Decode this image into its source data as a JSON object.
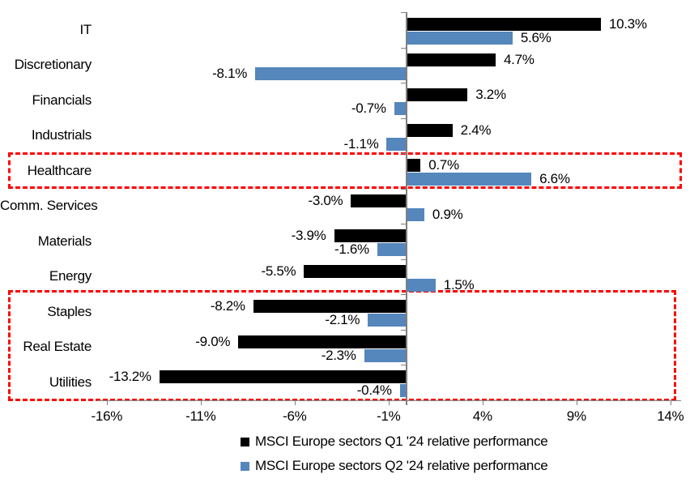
{
  "chart_data": {
    "type": "bar",
    "orientation": "horizontal",
    "title": "",
    "xlabel": "",
    "ylabel": "",
    "categories": [
      "IT",
      "Discretionary",
      "Financials",
      "Industrials",
      "Healthcare",
      "Comm. Services",
      "Materials",
      "Energy",
      "Staples",
      "Real Estate",
      "Utilities"
    ],
    "series": [
      {
        "name": "MSCI Europe sectors Q1 '24 relative performance",
        "color": "#000000",
        "values": [
          10.3,
          4.7,
          3.2,
          2.4,
          0.7,
          -3.0,
          -3.9,
          -5.5,
          -8.2,
          -9.0,
          -13.2
        ],
        "labels": [
          "10.3%",
          "4.7%",
          "3.2%",
          "2.4%",
          "0.7%",
          "-3.0%",
          "-3.9%",
          "-5.5%",
          "-8.2%",
          "-9.0%",
          "-13.2%"
        ]
      },
      {
        "name": "MSCI Europe sectors Q2 '24 relative performance",
        "color": "#5586BC",
        "values": [
          5.6,
          -8.1,
          -0.7,
          -1.1,
          6.6,
          0.9,
          -1.6,
          1.5,
          -2.1,
          -2.3,
          -0.4
        ],
        "labels": [
          "5.6%",
          "-8.1%",
          "-0.7%",
          "-1.1%",
          "6.6%",
          "0.9%",
          "-1.6%",
          "1.5%",
          "-2.1%",
          "-2.3%",
          "-0.4%"
        ]
      }
    ],
    "x_axis": {
      "tick_labels": [
        "-16%",
        "-11%",
        "-6%",
        "-1%",
        "4%",
        "9%",
        "14%"
      ],
      "tick_values": [
        -16,
        -11,
        -6,
        -1,
        4,
        9,
        14
      ],
      "range": [
        -16.5,
        14.6
      ],
      "unit": "%"
    },
    "grid": false,
    "legend_position": "bottom",
    "value_labels_shown": true,
    "highlights": [
      {
        "sectors": [
          "Healthcare"
        ],
        "color": "#FF0000",
        "style": "dashed"
      },
      {
        "sectors": [
          "Staples",
          "Real Estate",
          "Utilities"
        ],
        "color": "#FF0000",
        "style": "dashed"
      }
    ],
    "colors": {
      "q1": "#000000",
      "q2": "#5586BC",
      "axis": "#808080",
      "highlight": "#FF0000",
      "background": "#FFFFFF"
    }
  }
}
